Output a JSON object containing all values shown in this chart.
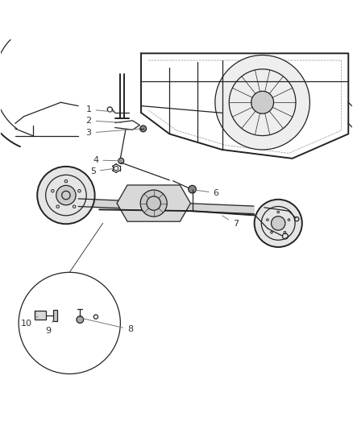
{
  "background_color": "#ffffff",
  "line_color": "#222222",
  "label_color": "#333333",
  "fig_width": 4.38,
  "fig_height": 5.33,
  "dpi": 100
}
